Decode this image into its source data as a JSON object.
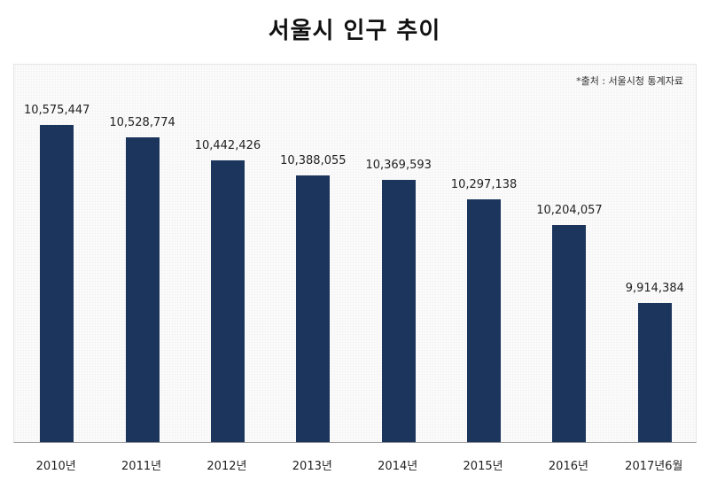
{
  "title": "서울시 인구 추이",
  "source": "*출처 : 서울시청 통계자료",
  "colors": {
    "bar": "#1b355c",
    "background": "#ffffff",
    "plot_bg": "#fafafa"
  },
  "chart_data": {
    "type": "bar",
    "title": "서울시 인구 추이",
    "xlabel": "",
    "ylabel": "",
    "categories": [
      "2010년",
      "2011년",
      "2012년",
      "2013년",
      "2014년",
      "2015년",
      "2016년",
      "2017년6월"
    ],
    "values": [
      10575447,
      10528774,
      10442426,
      10388055,
      10369593,
      10297138,
      10204057,
      9914384
    ],
    "value_labels": [
      "10,575,447",
      "10,528,774",
      "10,442,426",
      "10,388,055",
      "10,369,593",
      "10,297,138",
      "10,204,057",
      "9,914,384"
    ],
    "ylim": [
      9400000,
      10800000
    ],
    "grid": false,
    "legend": null,
    "annotations": [
      "*출처 : 서울시청 통계자료"
    ]
  }
}
